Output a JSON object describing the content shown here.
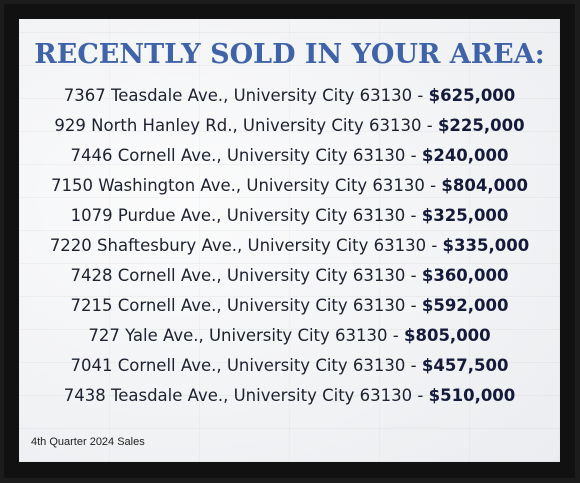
{
  "title": "RECENTLY SOLD IN YOUR AREA:",
  "sales": [
    {
      "address": "7367 Teasdale Ave., University City 63130",
      "price": "$625,000"
    },
    {
      "address": "929 North Hanley Rd., University City 63130",
      "price": "$225,000"
    },
    {
      "address": "7446 Cornell Ave., University City 63130",
      "price": "$240,000"
    },
    {
      "address": "7150 Washington Ave., University City 63130",
      "price": "$804,000"
    },
    {
      "address": "1079 Purdue Ave., University City 63130",
      "price": "$325,000"
    },
    {
      "address": "7220 Shaftesbury Ave., University City 63130",
      "price": "$335,000"
    },
    {
      "address": "7428 Cornell Ave., University City 63130",
      "price": "$360,000"
    },
    {
      "address": "7215 Cornell Ave., University City 63130",
      "price": "$592,000"
    },
    {
      "address": "727 Yale Ave., University City 63130",
      "price": "$805,000"
    },
    {
      "address": "7041 Cornell Ave., University City 63130",
      "price": "$457,500"
    },
    {
      "address": "7438 Teasdale Ave., University City 63130",
      "price": "$510,000"
    }
  ],
  "separator": "-",
  "footer": "4th Quarter 2024 Sales",
  "colors": {
    "title": "#3f63a8",
    "text": "#1d2130",
    "frame": "#111111"
  }
}
